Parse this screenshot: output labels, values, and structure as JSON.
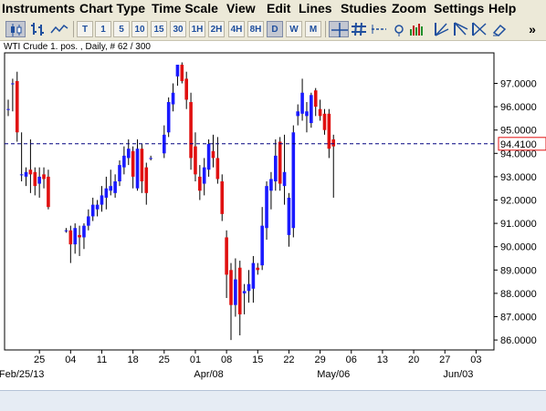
{
  "menu": {
    "items": [
      "Instruments",
      "Chart Type",
      "Time Scale",
      "View",
      "Edit",
      "Lines",
      "Studies",
      "Zoom",
      "Settings",
      "Help"
    ]
  },
  "toolbar": {
    "timeframes": [
      "T",
      "1",
      "5",
      "10",
      "15",
      "30",
      "1H",
      "2H",
      "4H",
      "8H",
      "D",
      "W",
      "M"
    ],
    "active_timeframe": "D",
    "icons_left": [
      "candlestick-chart-icon",
      "bar-chart-icon",
      "line-chart-icon"
    ],
    "icons_right": [
      "crosshair-icon",
      "grid-icon",
      "horizontal-line-icon",
      "info-icon",
      "trendline-icon",
      "volume-icon",
      "fan-icon",
      "fan-down-icon",
      "fib-icon",
      "fib-alt-icon",
      "eraser-icon"
    ],
    "overflow_label": "»",
    "accent_color": "#1f4f9e"
  },
  "chart_info": "WTI Crude 1. pos. , Daily, # 62 / 300",
  "chart_data": {
    "type": "candlestick",
    "title": "",
    "ylim": [
      85.6,
      98.2
    ],
    "yticks": [
      "97.0000",
      "96.0000",
      "95.0000",
      "94.0000",
      "93.0000",
      "92.0000",
      "91.0000",
      "90.0000",
      "89.0000",
      "88.0000",
      "87.0000",
      "86.0000"
    ],
    "ytick_values": [
      97,
      96,
      95,
      94,
      93,
      92,
      91,
      90,
      89,
      88,
      87,
      86
    ],
    "current_price_label": "94.4100",
    "current_price": 94.41,
    "xticks": [
      {
        "label": "25",
        "day": 25
      },
      {
        "label": "04",
        "day": 32
      },
      {
        "label": "11",
        "day": 39
      },
      {
        "label": "18",
        "day": 46
      },
      {
        "label": "25",
        "day": 53
      },
      {
        "label": "01",
        "day": 60
      },
      {
        "label": "08",
        "day": 67
      },
      {
        "label": "15",
        "day": 74
      },
      {
        "label": "22",
        "day": 81
      },
      {
        "label": "29",
        "day": 88
      },
      {
        "label": "06",
        "day": 95
      },
      {
        "label": "13",
        "day": 102
      },
      {
        "label": "20",
        "day": 109
      },
      {
        "label": "27",
        "day": 116
      },
      {
        "label": "03",
        "day": 123
      }
    ],
    "month_labels": [
      {
        "label": "Feb/25/13",
        "day": 21
      },
      {
        "label": "Apr/08",
        "day": 63
      },
      {
        "label": "May/06",
        "day": 91
      },
      {
        "label": "Jun/03",
        "day": 119
      }
    ],
    "x_range_days": [
      18,
      126
    ],
    "up_color": "#1a1aff",
    "down_color": "#e01010",
    "candles": [
      {
        "d": 18,
        "o": 95.9,
        "h": 96.3,
        "l": 95.6,
        "c": 95.9
      },
      {
        "d": 19,
        "o": 97.0,
        "h": 97.2,
        "l": 95.8,
        "c": 97.0
      },
      {
        "d": 20,
        "o": 97.1,
        "h": 97.5,
        "l": 94.5,
        "c": 94.9
      },
      {
        "d": 21,
        "o": 93.1,
        "h": 94.9,
        "l": 92.8,
        "c": 93.1
      },
      {
        "d": 22,
        "o": 93.0,
        "h": 93.4,
        "l": 92.6,
        "c": 93.2
      },
      {
        "d": 23,
        "o": 93.3,
        "h": 94.6,
        "l": 92.3,
        "c": 93.1
      },
      {
        "d": 24,
        "o": 93.2,
        "h": 93.4,
        "l": 92.2,
        "c": 92.6
      },
      {
        "d": 25,
        "o": 92.7,
        "h": 93.4,
        "l": 92.1,
        "c": 93.0
      },
      {
        "d": 26,
        "o": 93.1,
        "h": 93.4,
        "l": 92.5,
        "c": 92.9
      },
      {
        "d": 27,
        "o": 93.0,
        "h": 93.3,
        "l": 91.6,
        "c": 91.7
      },
      {
        "d": 31,
        "o": 90.7,
        "h": 90.8,
        "l": 90.6,
        "c": 90.7
      },
      {
        "d": 32,
        "o": 90.7,
        "h": 90.9,
        "l": 89.3,
        "c": 90.1
      },
      {
        "d": 33,
        "o": 90.1,
        "h": 91.0,
        "l": 89.7,
        "c": 90.8
      },
      {
        "d": 34,
        "o": 90.5,
        "h": 90.9,
        "l": 89.6,
        "c": 90.4
      },
      {
        "d": 35,
        "o": 90.4,
        "h": 91.0,
        "l": 89.9,
        "c": 90.9
      },
      {
        "d": 36,
        "o": 90.9,
        "h": 91.6,
        "l": 90.7,
        "c": 91.3
      },
      {
        "d": 37,
        "o": 91.3,
        "h": 92.1,
        "l": 91.1,
        "c": 91.8
      },
      {
        "d": 38,
        "o": 91.6,
        "h": 92.0,
        "l": 91.3,
        "c": 91.8
      },
      {
        "d": 39,
        "o": 91.8,
        "h": 92.6,
        "l": 91.5,
        "c": 92.2
      },
      {
        "d": 40,
        "o": 92.1,
        "h": 93.0,
        "l": 91.6,
        "c": 92.5
      },
      {
        "d": 41,
        "o": 92.4,
        "h": 93.3,
        "l": 92.2,
        "c": 92.6
      },
      {
        "d": 42,
        "o": 92.3,
        "h": 93.1,
        "l": 92.1,
        "c": 92.8
      },
      {
        "d": 43,
        "o": 92.8,
        "h": 93.7,
        "l": 92.6,
        "c": 93.5
      },
      {
        "d": 44,
        "o": 93.4,
        "h": 94.3,
        "l": 93.1,
        "c": 93.9
      },
      {
        "d": 45,
        "o": 93.8,
        "h": 94.6,
        "l": 93.5,
        "c": 94.2
      },
      {
        "d": 46,
        "o": 94.1,
        "h": 94.3,
        "l": 92.5,
        "c": 93.0
      },
      {
        "d": 47,
        "o": 92.5,
        "h": 94.6,
        "l": 92.4,
        "c": 94.2
      },
      {
        "d": 48,
        "o": 94.2,
        "h": 94.4,
        "l": 92.3,
        "c": 92.8
      },
      {
        "d": 49,
        "o": 93.4,
        "h": 93.6,
        "l": 91.8,
        "c": 92.3
      },
      {
        "d": 50,
        "o": 93.8,
        "h": 93.9,
        "l": 93.7,
        "c": 93.8
      },
      {
        "d": 53,
        "o": 94.0,
        "h": 95.2,
        "l": 93.8,
        "c": 94.8
      },
      {
        "d": 54,
        "o": 94.9,
        "h": 96.4,
        "l": 94.7,
        "c": 96.2
      },
      {
        "d": 55,
        "o": 96.1,
        "h": 97.0,
        "l": 95.8,
        "c": 96.6
      },
      {
        "d": 56,
        "o": 97.3,
        "h": 97.8,
        "l": 96.9,
        "c": 97.8
      },
      {
        "d": 57,
        "o": 97.8,
        "h": 97.9,
        "l": 97.0,
        "c": 97.1
      },
      {
        "d": 58,
        "o": 97.2,
        "h": 97.5,
        "l": 95.9,
        "c": 96.3
      },
      {
        "d": 59,
        "o": 96.2,
        "h": 96.6,
        "l": 93.3,
        "c": 93.8
      },
      {
        "d": 60,
        "o": 94.3,
        "h": 94.9,
        "l": 92.8,
        "c": 93.1
      },
      {
        "d": 61,
        "o": 93.0,
        "h": 93.5,
        "l": 92.0,
        "c": 92.4
      },
      {
        "d": 62,
        "o": 92.7,
        "h": 93.8,
        "l": 92.2,
        "c": 93.4
      },
      {
        "d": 63,
        "o": 93.3,
        "h": 94.6,
        "l": 93.0,
        "c": 94.4
      },
      {
        "d": 64,
        "o": 94.1,
        "h": 94.8,
        "l": 93.4,
        "c": 93.8
      },
      {
        "d": 65,
        "o": 93.8,
        "h": 94.7,
        "l": 92.7,
        "c": 92.9
      },
      {
        "d": 66,
        "o": 92.8,
        "h": 93.1,
        "l": 91.1,
        "c": 91.4
      },
      {
        "d": 67,
        "o": 90.4,
        "h": 90.7,
        "l": 87.8,
        "c": 88.8
      },
      {
        "d": 68,
        "o": 89.0,
        "h": 89.3,
        "l": 86.0,
        "c": 87.5
      },
      {
        "d": 69,
        "o": 87.5,
        "h": 89.5,
        "l": 87.0,
        "c": 88.6
      },
      {
        "d": 70,
        "o": 89.1,
        "h": 89.4,
        "l": 86.2,
        "c": 87.1
      },
      {
        "d": 71,
        "o": 88.0,
        "h": 88.4,
        "l": 87.1,
        "c": 88.1
      },
      {
        "d": 72,
        "o": 88.1,
        "h": 89.0,
        "l": 87.6,
        "c": 88.4
      },
      {
        "d": 73,
        "o": 88.2,
        "h": 89.6,
        "l": 87.6,
        "c": 89.3
      },
      {
        "d": 74,
        "o": 89.1,
        "h": 89.3,
        "l": 88.8,
        "c": 89.0
      },
      {
        "d": 75,
        "o": 89.2,
        "h": 91.7,
        "l": 89.0,
        "c": 90.9
      },
      {
        "d": 76,
        "o": 90.8,
        "h": 92.8,
        "l": 90.3,
        "c": 92.6
      },
      {
        "d": 77,
        "o": 92.4,
        "h": 93.2,
        "l": 91.6,
        "c": 92.9
      },
      {
        "d": 78,
        "o": 92.8,
        "h": 94.6,
        "l": 92.4,
        "c": 93.9
      },
      {
        "d": 79,
        "o": 94.5,
        "h": 94.7,
        "l": 92.4,
        "c": 92.7
      },
      {
        "d": 80,
        "o": 92.6,
        "h": 94.8,
        "l": 91.8,
        "c": 93.2
      },
      {
        "d": 81,
        "o": 90.5,
        "h": 92.3,
        "l": 90.0,
        "c": 92.1
      },
      {
        "d": 82,
        "o": 90.8,
        "h": 95.2,
        "l": 90.4,
        "c": 94.9
      },
      {
        "d": 83,
        "o": 95.6,
        "h": 96.1,
        "l": 95.2,
        "c": 95.8
      },
      {
        "d": 84,
        "o": 95.7,
        "h": 97.2,
        "l": 95.4,
        "c": 96.6
      },
      {
        "d": 85,
        "o": 95.6,
        "h": 96.2,
        "l": 94.9,
        "c": 95.8
      },
      {
        "d": 86,
        "o": 95.3,
        "h": 96.6,
        "l": 95.1,
        "c": 96.5
      },
      {
        "d": 87,
        "o": 96.7,
        "h": 96.8,
        "l": 95.6,
        "c": 96.0
      },
      {
        "d": 88,
        "o": 95.9,
        "h": 96.3,
        "l": 95.4,
        "c": 95.6
      },
      {
        "d": 89,
        "o": 95.7,
        "h": 95.9,
        "l": 94.8,
        "c": 95.0
      },
      {
        "d": 90,
        "o": 95.7,
        "h": 95.9,
        "l": 93.8,
        "c": 94.2
      },
      {
        "d": 91,
        "o": 94.6,
        "h": 94.8,
        "l": 92.1,
        "c": 94.3
      }
    ]
  }
}
